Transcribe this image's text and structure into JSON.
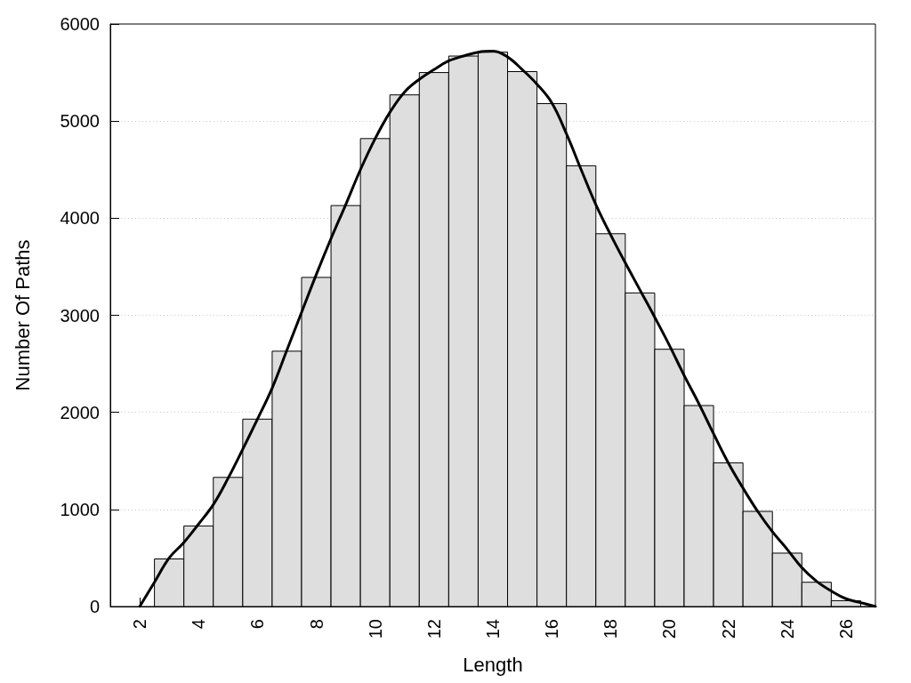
{
  "chart_data": {
    "type": "histogram",
    "xlabel": "Length",
    "ylabel": "Number Of Paths",
    "bins": [
      2.5,
      3.5,
      4.5,
      5.5,
      6.5,
      7.5,
      8.5,
      9.5,
      10.5,
      11.5,
      12.5,
      13.5,
      14.5,
      15.5,
      16.5,
      17.5,
      18.5,
      19.5,
      20.5,
      21.5,
      22.5,
      23.5,
      24.5,
      25.5,
      26.5
    ],
    "series": [
      {
        "color": "#dedede",
        "values": [
          490,
          830,
          1330,
          1930,
          2630,
          3390,
          4130,
          4820,
          5270,
          5500,
          5670,
          5710,
          5510,
          5180,
          4540,
          3840,
          3230,
          2650,
          2070,
          1480,
          980,
          550,
          250,
          60
        ]
      },
      {
        "type": "line",
        "color": "#000000",
        "x": [
          2,
          2.5,
          3,
          3.5,
          4,
          4.5,
          5,
          5.5,
          6,
          6.5,
          7,
          7.5,
          8,
          8.5,
          9,
          9.5,
          10,
          10.5,
          11,
          11.5,
          12,
          12.5,
          13,
          13.5,
          14,
          14.5,
          15,
          15.5,
          16,
          16.5,
          17,
          17.5,
          18,
          18.5,
          19,
          19.5,
          20,
          20.5,
          21,
          21.5,
          22,
          22.5,
          23,
          23.5,
          24,
          24.5,
          25,
          25.5,
          26,
          26.5,
          27
        ],
        "values": [
          0,
          250,
          500,
          660,
          850,
          1050,
          1320,
          1620,
          1930,
          2250,
          2640,
          3030,
          3420,
          3790,
          4140,
          4500,
          4820,
          5090,
          5300,
          5430,
          5530,
          5620,
          5670,
          5710,
          5720,
          5660,
          5530,
          5380,
          5190,
          4870,
          4500,
          4140,
          3830,
          3540,
          3260,
          2980,
          2690,
          2380,
          2090,
          1780,
          1480,
          1220,
          980,
          770,
          590,
          400,
          260,
          160,
          80,
          40,
          0
        ]
      }
    ],
    "marker": "none",
    "xlim": [
      1,
      27
    ],
    "xticks": [
      2,
      4,
      6,
      8,
      10,
      12,
      14,
      16,
      18,
      20,
      22,
      24,
      26
    ],
    "ylim": [
      0,
      6000
    ],
    "yticks": [
      0,
      1000,
      2000,
      3000,
      4000,
      5000,
      6000
    ],
    "grid": "y"
  }
}
